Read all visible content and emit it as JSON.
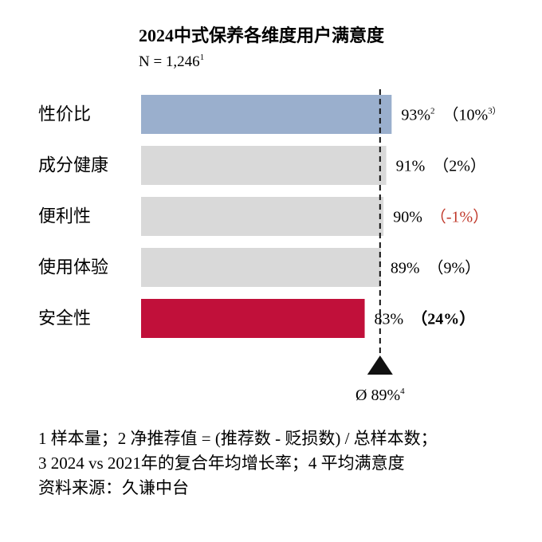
{
  "chart_data": {
    "type": "bar",
    "orientation": "horizontal",
    "title": "2024中式保养各维度用户满意度",
    "subtitle": "N = 1,246",
    "subtitle_note": "1",
    "categories": [
      "性价比",
      "成分健康",
      "便利性",
      "使用体验",
      "安全性"
    ],
    "values": [
      93,
      91,
      90,
      89,
      83
    ],
    "value_labels": [
      "93%",
      "91%",
      "90%",
      "89%",
      "83%"
    ],
    "value_notes": [
      "2",
      "",
      "",
      "",
      ""
    ],
    "growth_labels": [
      "（10%",
      "（2%）",
      "（-1%）",
      "（9%）",
      "（24%）"
    ],
    "growth_notes": [
      "3）",
      "",
      "",
      "",
      ""
    ],
    "growth_values": [
      10,
      2,
      -1,
      9,
      24
    ],
    "bar_colors": [
      "#9aafcd",
      "#d9d9d9",
      "#d9d9d9",
      "#d9d9d9",
      "#c1103a"
    ],
    "negative_color": "#c0392b",
    "average": {
      "value": 89,
      "label": "Ø 89%",
      "note": "4"
    },
    "xlim": [
      0,
      100
    ]
  },
  "footnotes": [
    "1 样本量；2 净推荐值 = (推荐数 - 贬损数) / 总样本数；",
    "3 2024 vs 2021年的复合年均增长率；4 平均满意度",
    "资料来源：久谦中台"
  ]
}
